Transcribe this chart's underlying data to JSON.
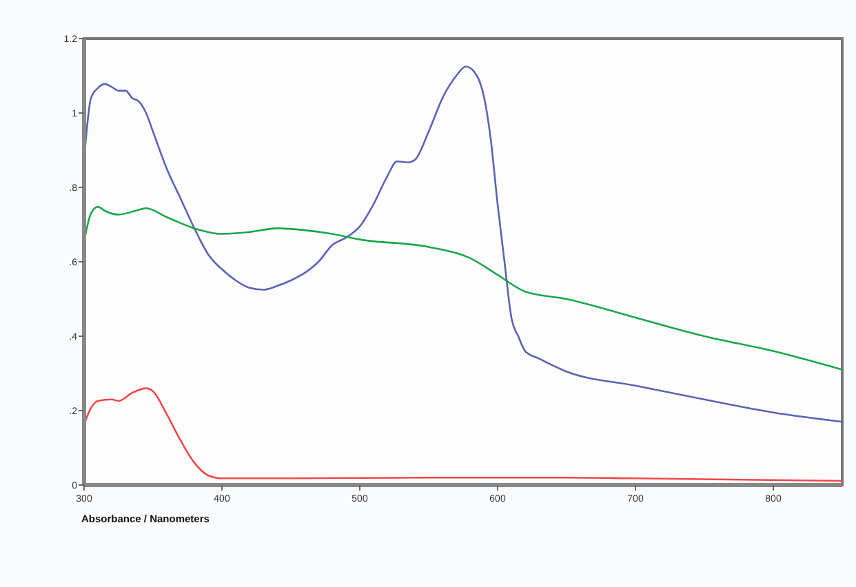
{
  "chart_data": {
    "type": "line",
    "xlabel": "Absorbance / Nanometers",
    "xlim": [
      300,
      850
    ],
    "xticks": [
      300,
      400,
      500,
      600,
      700,
      800
    ],
    "ylim": [
      0,
      1.2
    ],
    "yticks": [
      {
        "value": 0,
        "label": "0"
      },
      {
        "value": 0.2,
        "label": ".2"
      },
      {
        "value": 0.4,
        "label": ".4"
      },
      {
        "value": 0.6,
        "label": ".6"
      },
      {
        "value": 0.8,
        "label": ".8"
      },
      {
        "value": 1,
        "label": "1"
      },
      {
        "value": 1.2,
        "label": "1.2"
      }
    ],
    "grid": false,
    "marker": "none",
    "line_style": "solid",
    "series": [
      {
        "color": "#5a63b5",
        "x": [
          300,
          305,
          310,
          315,
          320,
          325,
          330,
          335,
          340,
          345,
          350,
          360,
          370,
          380,
          390,
          400,
          410,
          420,
          430,
          440,
          450,
          460,
          470,
          480,
          490,
          500,
          510,
          520,
          527,
          535,
          540,
          550,
          560,
          570,
          577,
          585,
          590,
          595,
          600,
          605,
          610,
          615,
          620,
          630,
          650,
          700,
          750,
          800,
          850
        ],
        "values": [
          0.874,
          1.04,
          1.067,
          1.078,
          1.07,
          1.06,
          1.06,
          1.04,
          1.03,
          1.0,
          0.95,
          0.85,
          0.77,
          0.69,
          0.62,
          0.58,
          0.55,
          0.53,
          0.525,
          0.535,
          0.55,
          0.57,
          0.6,
          0.645,
          0.665,
          0.695,
          0.755,
          0.83,
          0.87,
          0.867,
          0.874,
          0.95,
          1.04,
          1.1,
          1.125,
          1.1,
          1.045,
          0.93,
          0.755,
          0.6,
          0.45,
          0.4,
          0.36,
          0.34,
          0.305,
          0.267,
          0.23,
          0.195,
          0.17
        ]
      },
      {
        "color": "#1aa64a",
        "x": [
          300,
          305,
          310,
          315,
          325,
          340,
          345,
          360,
          380,
          400,
          420,
          440,
          460,
          480,
          500,
          550,
          580,
          600,
          620,
          650,
          700,
          750,
          800,
          850
        ],
        "values": [
          0.655,
          0.73,
          0.748,
          0.737,
          0.727,
          0.74,
          0.744,
          0.72,
          0.69,
          0.675,
          0.68,
          0.69,
          0.685,
          0.675,
          0.66,
          0.64,
          0.61,
          0.565,
          0.52,
          0.5,
          0.45,
          0.4,
          0.36,
          0.31
        ]
      },
      {
        "color": "#f04848",
        "x": [
          300,
          305,
          310,
          320,
          325,
          335,
          345,
          350,
          360,
          370,
          380,
          390,
          400,
          450,
          550,
          650,
          700,
          850
        ],
        "values": [
          0.163,
          0.207,
          0.226,
          0.23,
          0.226,
          0.248,
          0.26,
          0.252,
          0.19,
          0.12,
          0.06,
          0.026,
          0.018,
          0.018,
          0.02,
          0.02,
          0.018,
          0.011
        ]
      }
    ]
  }
}
